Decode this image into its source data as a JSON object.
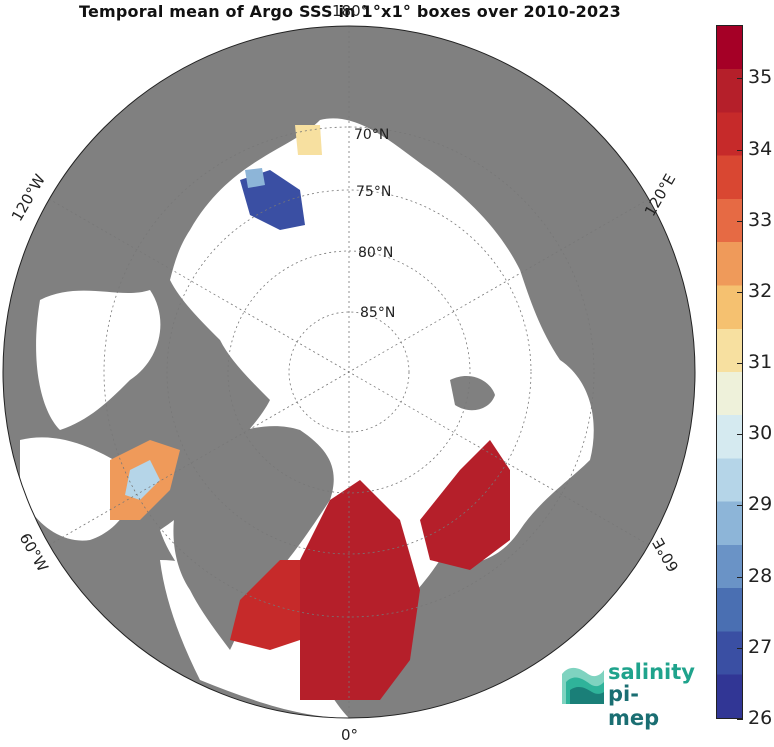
{
  "title": "Temporal mean of Argo SSS in 1°x1° boxes over 2010-2023",
  "map": {
    "projection": "north-polar-stereographic",
    "land_color": "#808080",
    "ocean_color": "#ffffff",
    "lon_labels": [
      {
        "text": "180°",
        "lon": 180
      },
      {
        "text": "120°E",
        "lon": 120
      },
      {
        "text": "60°E",
        "lon": 60
      },
      {
        "text": "0°",
        "lon": 0
      },
      {
        "text": "60°W",
        "lon": -60
      },
      {
        "text": "120°W",
        "lon": -120
      }
    ],
    "lat_labels": [
      {
        "text": "70°N",
        "lat": 70
      },
      {
        "text": "75°N",
        "lat": 75
      },
      {
        "text": "80°N",
        "lat": 80
      },
      {
        "text": "85°N",
        "lat": 85
      }
    ]
  },
  "colorbar": {
    "min": 26,
    "max": 35.75,
    "ticks": [
      "35",
      "34",
      "33",
      "32",
      "31",
      "30",
      "29",
      "28",
      "27",
      "26"
    ],
    "tick_values": [
      35,
      34,
      33,
      32,
      31,
      30,
      29,
      28,
      27,
      26
    ],
    "colors": [
      "#313695",
      "#3a4fa3",
      "#4a6fb2",
      "#6a93c6",
      "#8db5d8",
      "#b5d5e8",
      "#d5eaf0",
      "#eef1da",
      "#f7e0a0",
      "#f5c170",
      "#ef9a5a",
      "#e66a44",
      "#d94732",
      "#c62a2a",
      "#b51f2a",
      "#a50026"
    ]
  },
  "logo": {
    "word1": "salinity",
    "word2": "pi-mep"
  }
}
